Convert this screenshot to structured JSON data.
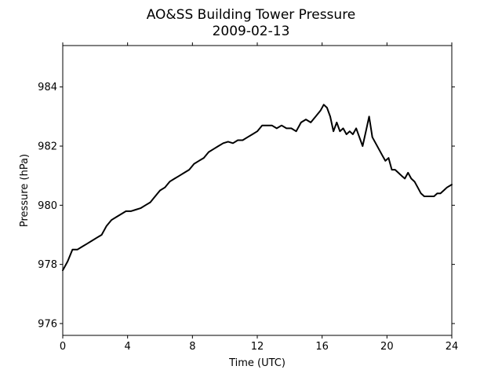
{
  "chart_data": {
    "type": "line",
    "title": "AO&SS Building Tower Pressure",
    "subtitle": "2009-02-13",
    "xlabel": "Time (UTC)",
    "ylabel": "Pressure (hPa)",
    "xlim": [
      0,
      24
    ],
    "ylim": [
      975.6,
      985.4
    ],
    "xticks": [
      0,
      4,
      8,
      12,
      16,
      20,
      24
    ],
    "xtick_labels": [
      "0",
      "4",
      "8",
      "12",
      "16",
      "20",
      "24"
    ],
    "yticks": [
      976,
      978,
      980,
      982,
      984
    ],
    "ytick_labels": [
      "976",
      "978",
      "980",
      "982",
      "984"
    ],
    "grid": false,
    "line_color": "#000000",
    "series": [
      {
        "x": [
          0,
          0.3,
          0.6,
          0.9,
          1.2,
          1.5,
          1.8,
          2.1,
          2.4,
          2.7,
          3.0,
          3.3,
          3.6,
          3.9,
          4.2,
          4.5,
          4.8,
          5.1,
          5.4,
          5.7,
          6.0,
          6.3,
          6.6,
          6.9,
          7.2,
          7.5,
          7.8,
          8.1,
          8.4,
          8.7,
          9.0,
          9.3,
          9.6,
          9.9,
          10.2,
          10.5,
          10.8,
          11.1,
          11.4,
          11.7,
          12.0,
          12.3,
          12.6,
          12.9,
          13.2,
          13.5,
          13.8,
          14.1,
          14.4,
          14.7,
          15.0,
          15.3,
          15.6,
          15.9,
          16.1,
          16.3,
          16.5,
          16.7,
          16.9,
          17.1,
          17.3,
          17.5,
          17.7,
          17.9,
          18.1,
          18.3,
          18.5,
          18.7,
          18.9,
          19.1,
          19.3,
          19.5,
          19.7,
          19.9,
          20.1,
          20.3,
          20.5,
          20.7,
          20.9,
          21.1,
          21.3,
          21.5,
          21.7,
          21.9,
          22.1,
          22.3,
          22.5,
          22.7,
          22.9,
          23.1,
          23.3,
          23.5,
          23.7,
          24.0
        ],
        "y": [
          977.8,
          978.1,
          978.5,
          978.5,
          978.6,
          978.7,
          978.8,
          978.9,
          979.0,
          979.3,
          979.5,
          979.6,
          979.7,
          979.8,
          979.8,
          979.85,
          979.9,
          980.0,
          980.1,
          980.3,
          980.5,
          980.6,
          980.8,
          980.9,
          981.0,
          981.1,
          981.2,
          981.4,
          981.5,
          981.6,
          981.8,
          981.9,
          982.0,
          982.1,
          982.15,
          982.1,
          982.2,
          982.2,
          982.3,
          982.4,
          982.5,
          982.7,
          982.7,
          982.7,
          982.6,
          982.7,
          982.6,
          982.6,
          982.5,
          982.8,
          982.9,
          982.8,
          983.0,
          983.2,
          983.4,
          983.3,
          983.0,
          982.5,
          982.8,
          982.5,
          982.6,
          982.4,
          982.5,
          982.4,
          982.6,
          982.3,
          982.0,
          982.5,
          983.0,
          982.3,
          982.1,
          981.9,
          981.7,
          981.5,
          981.6,
          981.2,
          981.2,
          981.1,
          981.0,
          980.9,
          981.1,
          980.9,
          980.8,
          980.6,
          980.4,
          980.3,
          980.3,
          980.3,
          980.3,
          980.4,
          980.4,
          980.5,
          980.6,
          980.7
        ]
      }
    ]
  }
}
